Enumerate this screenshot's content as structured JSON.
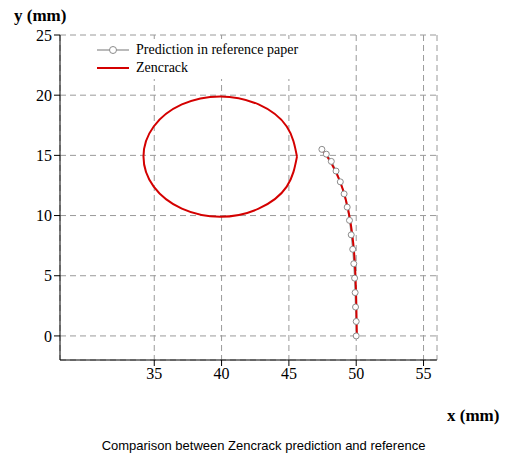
{
  "chart_data": {
    "type": "line",
    "title": "Comparison between Zencrack prediction and reference",
    "x_label": "x (mm)",
    "y_label": "y (mm)",
    "xlim": [
      28,
      56
    ],
    "ylim": [
      -2,
      25
    ],
    "xticks": [
      35,
      40,
      45,
      50,
      55
    ],
    "yticks": [
      0,
      5,
      10,
      15,
      20,
      25
    ],
    "grid": true,
    "legend": "upper left",
    "series": [
      {
        "name": "Prediction in reference paper",
        "color": "#8c8c8c",
        "marker": "circle",
        "line_style": "solid",
        "x": [
          50,
          50,
          49.95,
          49.92,
          49.88,
          49.82,
          49.74,
          49.63,
          49.5,
          49.33,
          49.1,
          48.82,
          48.5,
          48.15,
          47.78,
          47.45
        ],
        "values": [
          0,
          1.2,
          2.4,
          3.6,
          4.8,
          6,
          7.2,
          8.4,
          9.6,
          10.7,
          11.8,
          12.8,
          13.7,
          14.5,
          15.1,
          15.5
        ]
      },
      {
        "name": "Zencrack",
        "color": "#d40000",
        "marker": "none",
        "line_style": "solid",
        "x": [
          45.6,
          44.84,
          42.75,
          39.9,
          37.05,
          34.96,
          34.2,
          34.96,
          37.05,
          39.9,
          42.75,
          44.84,
          45.6,
          null,
          50.05,
          50,
          49.9,
          49.7,
          49.4,
          49,
          48.5,
          47.9,
          47.5
        ],
        "values": [
          14.9,
          17.4,
          19.23,
          19.9,
          19.23,
          17.4,
          14.9,
          12.4,
          10.57,
          9.9,
          10.57,
          12.4,
          14.9,
          null,
          0,
          3,
          6,
          8.5,
          10.5,
          12.2,
          13.6,
          14.8,
          15.4
        ]
      }
    ]
  }
}
